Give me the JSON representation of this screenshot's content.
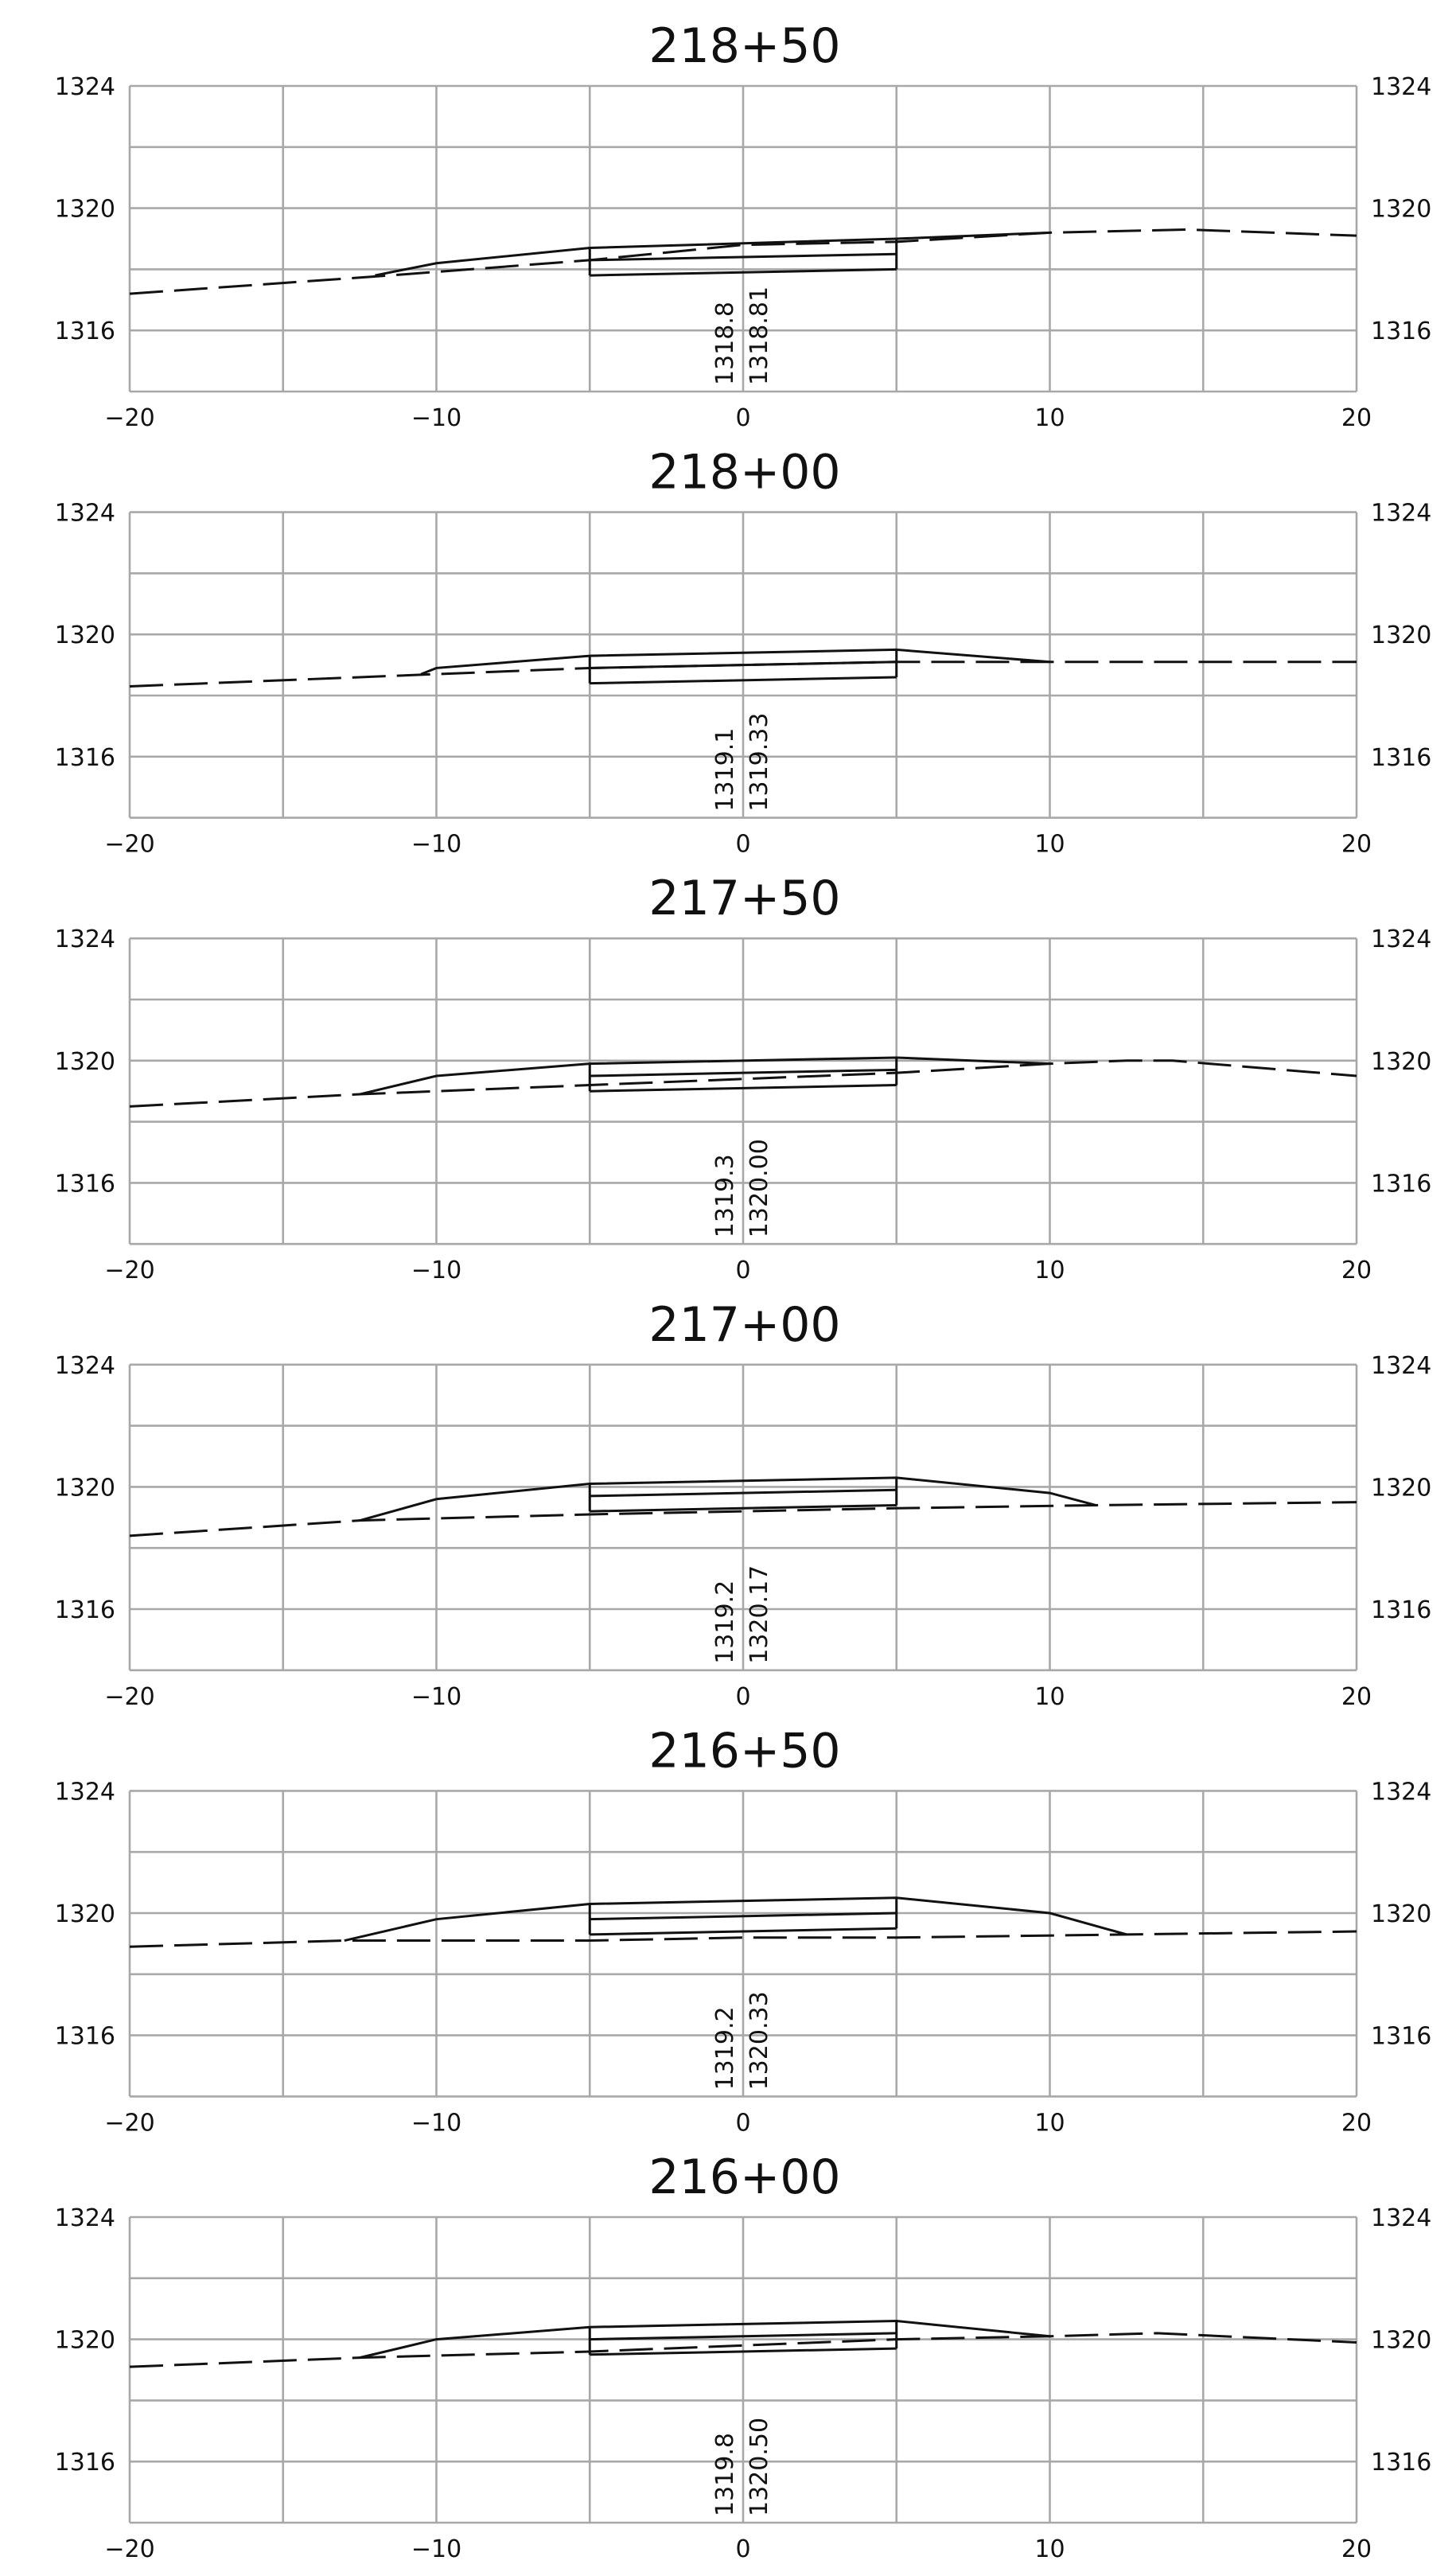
{
  "chart_data": [
    {
      "type": "line",
      "title": "218+50",
      "xlim": [
        -20,
        20
      ],
      "ylim": [
        1314,
        1324
      ],
      "x_ticks": [
        "−20",
        "−10",
        "0",
        "10",
        "20"
      ],
      "y_ticks": [
        "1324",
        "1320",
        "1316"
      ],
      "grid": true,
      "existing_ground": [
        [
          -20,
          1317.2
        ],
        [
          -11.5,
          1317.8
        ],
        [
          -5,
          1318.3
        ],
        [
          0,
          1318.8
        ],
        [
          5,
          1318.9
        ],
        [
          10,
          1319.2
        ],
        [
          14.5,
          1319.3
        ],
        [
          20,
          1319.1
        ]
      ],
      "finished_surface": [
        [
          -12,
          1317.8
        ],
        [
          -10,
          1318.2
        ],
        [
          -5,
          1318.7
        ],
        [
          5,
          1319.0
        ],
        [
          10,
          1319.2
        ]
      ],
      "layers": [
        {
          "left": [
            -5,
            1318.3
          ],
          "right": [
            5,
            1318.5
          ]
        },
        {
          "left": [
            -5,
            1317.8
          ],
          "right": [
            5,
            1318.0
          ]
        }
      ],
      "elevations": [
        "1318.8",
        "1318.81"
      ]
    },
    {
      "type": "line",
      "title": "218+00",
      "xlim": [
        -20,
        20
      ],
      "ylim": [
        1314,
        1324
      ],
      "x_ticks": [
        "−20",
        "−10",
        "0",
        "10",
        "20"
      ],
      "y_ticks": [
        "1324",
        "1320",
        "1316"
      ],
      "grid": true,
      "existing_ground": [
        [
          -20,
          1318.3
        ],
        [
          -10,
          1318.7
        ],
        [
          -5,
          1318.9
        ],
        [
          0,
          1319.0
        ],
        [
          5,
          1319.1
        ],
        [
          10,
          1319.1
        ],
        [
          20,
          1319.1
        ]
      ],
      "finished_surface": [
        [
          -10.5,
          1318.7
        ],
        [
          -10,
          1318.9
        ],
        [
          -5,
          1319.3
        ],
        [
          5,
          1319.5
        ],
        [
          10,
          1319.1
        ]
      ],
      "layers": [
        {
          "left": [
            -5,
            1318.9
          ],
          "right": [
            5,
            1319.1
          ]
        },
        {
          "left": [
            -5,
            1318.4
          ],
          "right": [
            5,
            1318.6
          ]
        }
      ],
      "elevations": [
        "1319.1",
        "1319.33"
      ]
    },
    {
      "type": "line",
      "title": "217+50",
      "xlim": [
        -20,
        20
      ],
      "ylim": [
        1314,
        1324
      ],
      "x_ticks": [
        "−20",
        "−10",
        "0",
        "10",
        "20"
      ],
      "y_ticks": [
        "1324",
        "1320",
        "1316"
      ],
      "grid": true,
      "existing_ground": [
        [
          -20,
          1318.5
        ],
        [
          -12.5,
          1318.9
        ],
        [
          -5,
          1319.2
        ],
        [
          0,
          1319.4
        ],
        [
          5,
          1319.6
        ],
        [
          10,
          1319.9
        ],
        [
          12.5,
          1320.0
        ],
        [
          14,
          1320.0
        ],
        [
          20,
          1319.5
        ]
      ],
      "finished_surface": [
        [
          -12.5,
          1318.9
        ],
        [
          -10,
          1319.5
        ],
        [
          -5,
          1319.9
        ],
        [
          5,
          1320.1
        ],
        [
          10,
          1319.9
        ]
      ],
      "layers": [
        {
          "left": [
            -5,
            1319.5
          ],
          "right": [
            5,
            1319.7
          ]
        },
        {
          "left": [
            -5,
            1319.0
          ],
          "right": [
            5,
            1319.2
          ]
        }
      ],
      "elevations": [
        "1319.3",
        "1320.00"
      ]
    },
    {
      "type": "line",
      "title": "217+00",
      "xlim": [
        -20,
        20
      ],
      "ylim": [
        1314,
        1324
      ],
      "x_ticks": [
        "−20",
        "−10",
        "0",
        "10",
        "20"
      ],
      "y_ticks": [
        "1324",
        "1320",
        "1316"
      ],
      "grid": true,
      "existing_ground": [
        [
          -20,
          1318.4
        ],
        [
          -12.5,
          1318.9
        ],
        [
          -5,
          1319.1
        ],
        [
          0,
          1319.2
        ],
        [
          5,
          1319.3
        ],
        [
          11.5,
          1319.4
        ],
        [
          20,
          1319.5
        ]
      ],
      "finished_surface": [
        [
          -12.5,
          1318.9
        ],
        [
          -10,
          1319.6
        ],
        [
          -5,
          1320.1
        ],
        [
          5,
          1320.3
        ],
        [
          10,
          1319.8
        ],
        [
          11.5,
          1319.4
        ]
      ],
      "layers": [
        {
          "left": [
            -5,
            1319.7
          ],
          "right": [
            5,
            1319.9
          ]
        },
        {
          "left": [
            -5,
            1319.2
          ],
          "right": [
            5,
            1319.4
          ]
        }
      ],
      "elevations": [
        "1319.2",
        "1320.17"
      ]
    },
    {
      "type": "line",
      "title": "216+50",
      "xlim": [
        -20,
        20
      ],
      "ylim": [
        1314,
        1324
      ],
      "x_ticks": [
        "−20",
        "−10",
        "0",
        "10",
        "20"
      ],
      "y_ticks": [
        "1324",
        "1320",
        "1316"
      ],
      "grid": true,
      "existing_ground": [
        [
          -20,
          1318.9
        ],
        [
          -13,
          1319.1
        ],
        [
          -5,
          1319.1
        ],
        [
          0,
          1319.2
        ],
        [
          5,
          1319.2
        ],
        [
          12.5,
          1319.3
        ],
        [
          20,
          1319.4
        ]
      ],
      "finished_surface": [
        [
          -13,
          1319.1
        ],
        [
          -10,
          1319.8
        ],
        [
          -5,
          1320.3
        ],
        [
          5,
          1320.5
        ],
        [
          10,
          1320.0
        ],
        [
          12.5,
          1319.3
        ]
      ],
      "layers": [
        {
          "left": [
            -5,
            1319.8
          ],
          "right": [
            5,
            1320.0
          ]
        },
        {
          "left": [
            -5,
            1319.3
          ],
          "right": [
            5,
            1319.5
          ]
        }
      ],
      "elevations": [
        "1319.2",
        "1320.33"
      ]
    },
    {
      "type": "line",
      "title": "216+00",
      "xlim": [
        -20,
        20
      ],
      "ylim": [
        1314,
        1324
      ],
      "x_ticks": [
        "−20",
        "−10",
        "0",
        "10",
        "20"
      ],
      "y_ticks": [
        "1324",
        "1320",
        "1316"
      ],
      "grid": true,
      "existing_ground": [
        [
          -20,
          1319.1
        ],
        [
          -12.5,
          1319.4
        ],
        [
          -5,
          1319.6
        ],
        [
          0,
          1319.8
        ],
        [
          5,
          1320.0
        ],
        [
          10,
          1320.1
        ],
        [
          13.5,
          1320.2
        ],
        [
          20,
          1319.9
        ]
      ],
      "finished_surface": [
        [
          -12.5,
          1319.4
        ],
        [
          -10,
          1320.0
        ],
        [
          -5,
          1320.4
        ],
        [
          5,
          1320.6
        ],
        [
          10,
          1320.1
        ]
      ],
      "layers": [
        {
          "left": [
            -5,
            1320.0
          ],
          "right": [
            5,
            1320.2
          ]
        },
        {
          "left": [
            -5,
            1319.5
          ],
          "right": [
            5,
            1319.7
          ]
        }
      ],
      "elevations": [
        "1319.8",
        "1320.50"
      ]
    }
  ]
}
